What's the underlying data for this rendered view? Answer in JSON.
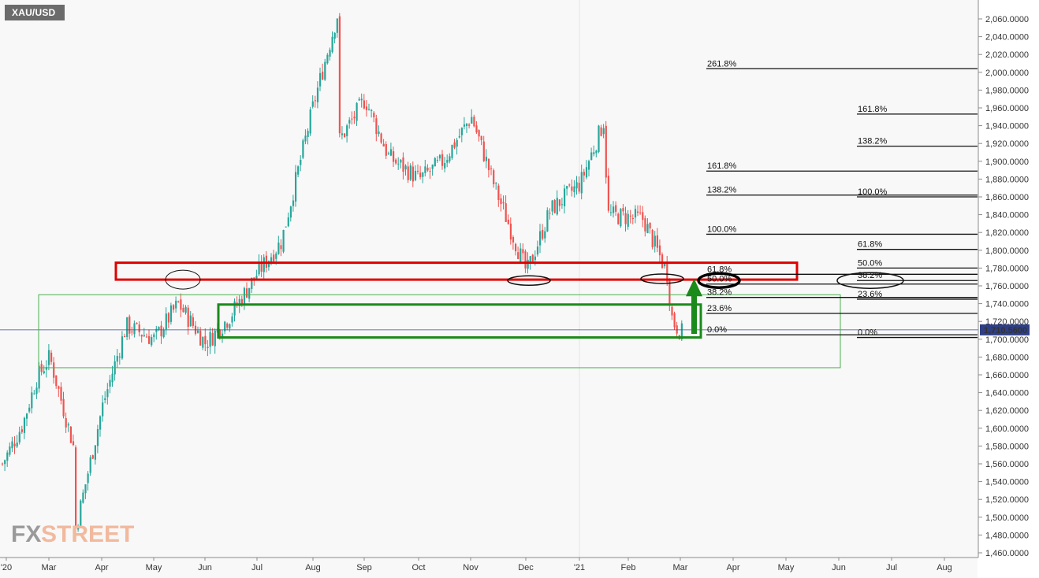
{
  "symbol": "XAU/USD",
  "watermark": {
    "part1": "FX",
    "part2": "STREET"
  },
  "colors": {
    "bull": "#26a69a",
    "bear": "#ef5350",
    "accent_red": "#e00000",
    "accent_green": "#1a8a1a",
    "thin_green": "#4caf50",
    "price_line": "#3b4a8c"
  },
  "chart_data": {
    "type": "candlestick",
    "x_axis_labels": [
      "'20",
      "Mar",
      "Apr",
      "May",
      "Jun",
      "Jul",
      "Aug",
      "Sep",
      "Oct",
      "Nov",
      "Dec",
      "'21",
      "Feb",
      "Mar",
      "Apr",
      "May",
      "Jun",
      "Jul",
      "Aug"
    ],
    "y_ticks": [
      "2,060.0000",
      "2,040.0000",
      "2,020.0000",
      "2,000.0000",
      "1,980.0000",
      "1,960.0000",
      "1,940.0000",
      "1,920.0000",
      "1,900.0000",
      "1,880.0000",
      "1,860.0000",
      "1,840.0000",
      "1,820.0000",
      "1,800.0000",
      "1,780.0000",
      "1,760.0000",
      "1,740.0000",
      "1,720.0000",
      "1,700.0000",
      "1,680.0000",
      "1,660.0000",
      "1,640.0000",
      "1,620.0000",
      "1,600.0000",
      "1,580.0000",
      "1,560.0000",
      "1,540.0000",
      "1,520.0000",
      "1,500.0000",
      "1,480.0000",
      "1,460.0000"
    ],
    "ylim": [
      1455,
      2075
    ],
    "current_price": 1710.56,
    "current_price_label": "1,710.5600",
    "price_path": [
      [
        "'20",
        1560
      ],
      [
        "Feb",
        1605
      ],
      [
        "Feb",
        1655
      ],
      [
        "Mar",
        1680
      ],
      [
        "Mar",
        1580
      ],
      [
        "Mar",
        1475
      ],
      [
        "Apr",
        1625
      ],
      [
        "Apr",
        1715
      ],
      [
        "May",
        1700
      ],
      [
        "May",
        1740
      ],
      [
        "Jun",
        1695
      ],
      [
        "Jun",
        1725
      ],
      [
        "Jul",
        1775
      ],
      [
        "Jul",
        1810
      ],
      [
        "Aug",
        1965
      ],
      [
        "Aug",
        2065
      ],
      [
        "Aug",
        1920
      ],
      [
        "Sep",
        1970
      ],
      [
        "Sep",
        1905
      ],
      [
        "Oct",
        1880
      ],
      [
        "Oct",
        1900
      ],
      [
        "Nov",
        1950
      ],
      [
        "Nov",
        1870
      ],
      [
        "Dec",
        1775
      ],
      [
        "Dec",
        1845
      ],
      [
        "'21",
        1875
      ],
      [
        "'21",
        1945
      ],
      [
        "Feb",
        1840
      ],
      [
        "Feb",
        1835
      ],
      [
        "Feb",
        1775
      ],
      [
        "Mar",
        1720
      ],
      [
        "Mar",
        1705
      ]
    ],
    "fib_levels": [
      {
        "label": "261.8%",
        "price": 2004
      },
      {
        "label": "161.8%",
        "price": 1953
      },
      {
        "label": "138.2%",
        "price": 1917
      },
      {
        "label": "161.8%",
        "price": 1889
      },
      {
        "label": "138.2%",
        "price": 1862
      },
      {
        "label": "100.0%",
        "price": 1860
      },
      {
        "label": "100.0%",
        "price": 1818
      },
      {
        "label": "61.8%",
        "price": 1801
      },
      {
        "label": "50.0%",
        "price": 1780
      },
      {
        "label": "61.8%",
        "price": 1773
      },
      {
        "label": "38.2%",
        "price": 1766
      },
      {
        "label": "50.0%",
        "price": 1762
      },
      {
        "label": "38.2%",
        "price": 1747
      },
      {
        "label": "23.6%",
        "price": 1745
      },
      {
        "label": "23.6%",
        "price": 1729
      },
      {
        "label": "0.0%",
        "price": 1705
      },
      {
        "label": "0.0%",
        "price": 1702
      }
    ],
    "zones": {
      "red_resistance": [
        1767,
        1786
      ],
      "green_outer": [
        1668,
        1750
      ],
      "green_inner": [
        1702,
        1739
      ]
    }
  }
}
